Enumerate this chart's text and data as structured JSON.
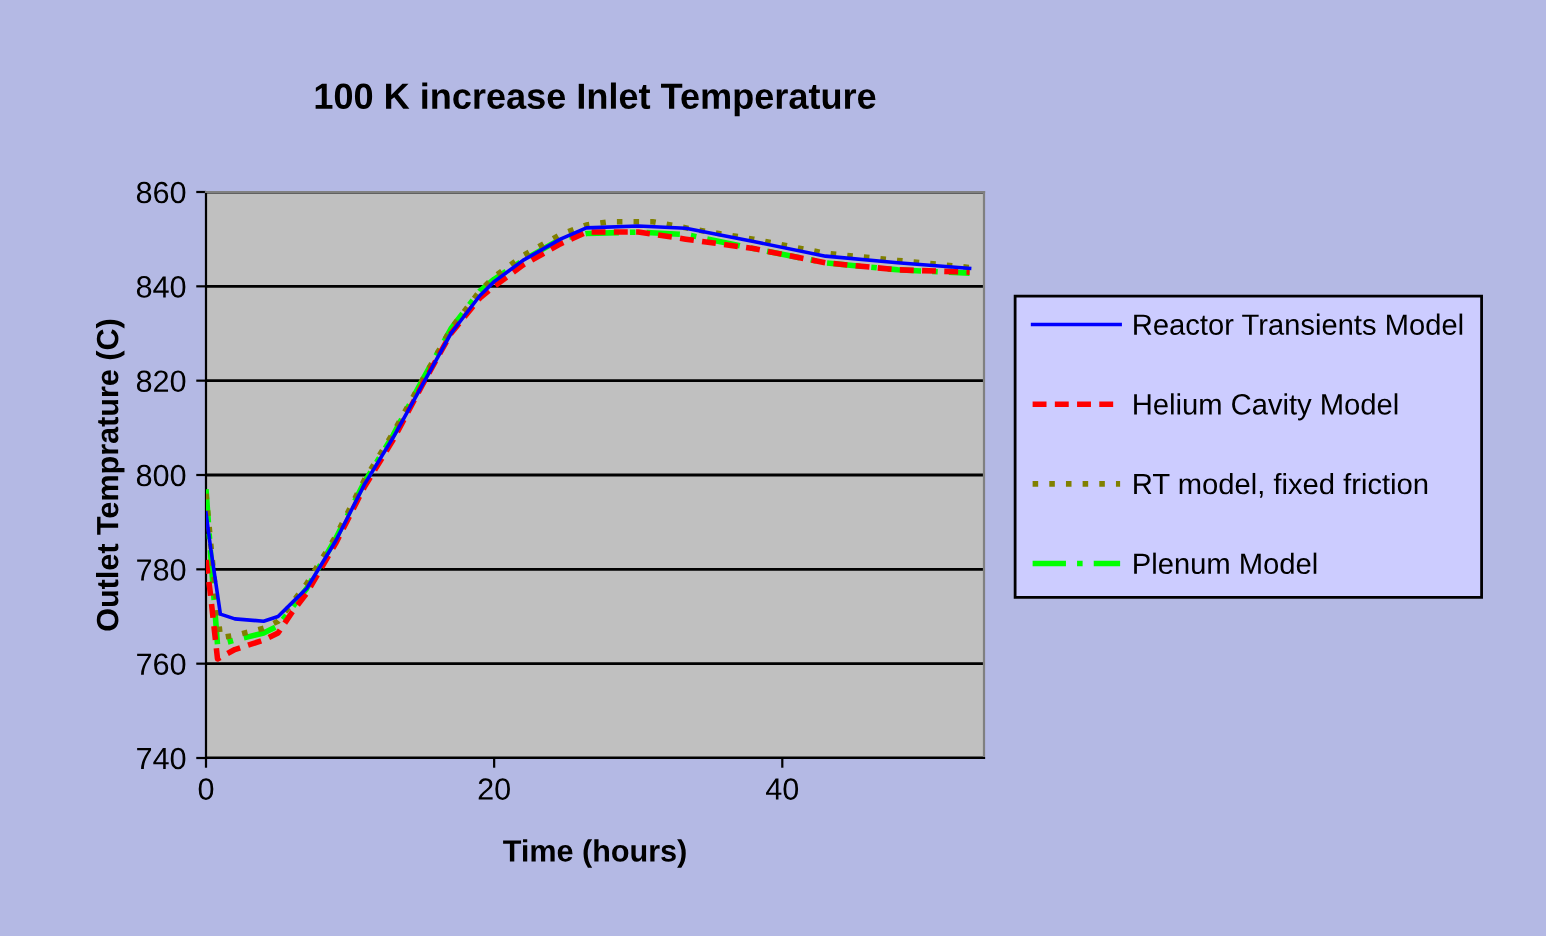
{
  "chart_data": {
    "type": "line",
    "title": "100 K increase Inlet Temperature",
    "xlabel": "Time (hours)",
    "ylabel": "Outlet Temprature (C)",
    "xlim": [
      0,
      54
    ],
    "xticks": [
      0,
      20,
      40
    ],
    "ylim": [
      740,
      860
    ],
    "yticks": [
      740,
      760,
      780,
      800,
      820,
      840,
      860
    ],
    "grid": "y",
    "legend": "right",
    "marker": "none",
    "series": [
      {
        "name": "Reactor Transients Model",
        "color": "#0000ff",
        "line_style": "solid",
        "x": [
          0,
          0.3,
          1,
          2,
          4,
          5,
          6,
          7,
          9,
          11,
          13,
          15,
          17,
          19,
          20,
          22,
          24.6,
          26.4,
          30,
          33.3,
          38,
          43,
          48,
          53
        ],
        "values": [
          792,
          785,
          770.5,
          769.5,
          769,
          770,
          773,
          776,
          786,
          798,
          808,
          819,
          830,
          838,
          841,
          845.5,
          850,
          852.4,
          852.8,
          852.3,
          849.5,
          846.4,
          845,
          843.8
        ]
      },
      {
        "name": "Helium Cavity Model",
        "color": "#ff0000",
        "line_style": "dashed",
        "x": [
          0,
          0.3,
          0.8,
          2,
          4,
          5,
          6,
          7,
          9,
          11,
          13,
          15,
          17,
          19,
          20,
          22,
          24.6,
          26.4,
          30,
          33.3,
          38,
          43,
          48,
          53
        ],
        "values": [
          782,
          775,
          761,
          763,
          765,
          766.5,
          771,
          775,
          785.5,
          797.5,
          807.5,
          819,
          830,
          837.5,
          840,
          844.5,
          849,
          851.5,
          851.5,
          850,
          848,
          845,
          843.5,
          843
        ]
      },
      {
        "name": "RT model, fixed friction",
        "color": "#808000",
        "line_style": "dotted",
        "x": [
          0,
          0.5,
          1,
          2,
          4,
          5,
          6,
          7,
          9,
          11,
          13,
          15,
          17,
          19,
          20,
          22,
          24.6,
          26.4,
          28,
          31,
          34,
          38,
          43,
          48,
          53
        ],
        "values": [
          796,
          780,
          765.5,
          766,
          767.5,
          769,
          773,
          777,
          787,
          799,
          809,
          820,
          831,
          839,
          842,
          846.5,
          851,
          853,
          853.7,
          853.7,
          852,
          850,
          847,
          845.5,
          844
        ]
      },
      {
        "name": "Plenum Model",
        "color": "#00ff00",
        "line_style": "dashdot",
        "x": [
          0,
          0.4,
          0.8,
          2,
          4,
          5,
          6,
          7,
          9,
          11,
          13,
          15,
          17,
          19,
          20,
          22,
          24.6,
          26.4,
          30,
          33.3,
          38,
          43,
          48,
          53
        ],
        "values": [
          797,
          780,
          764,
          765,
          766.5,
          768,
          772,
          776,
          786.5,
          798.5,
          808.5,
          820,
          831,
          839,
          841.5,
          845.5,
          850,
          851.2,
          851.5,
          851,
          848,
          845,
          843.5,
          842.8
        ]
      }
    ]
  }
}
